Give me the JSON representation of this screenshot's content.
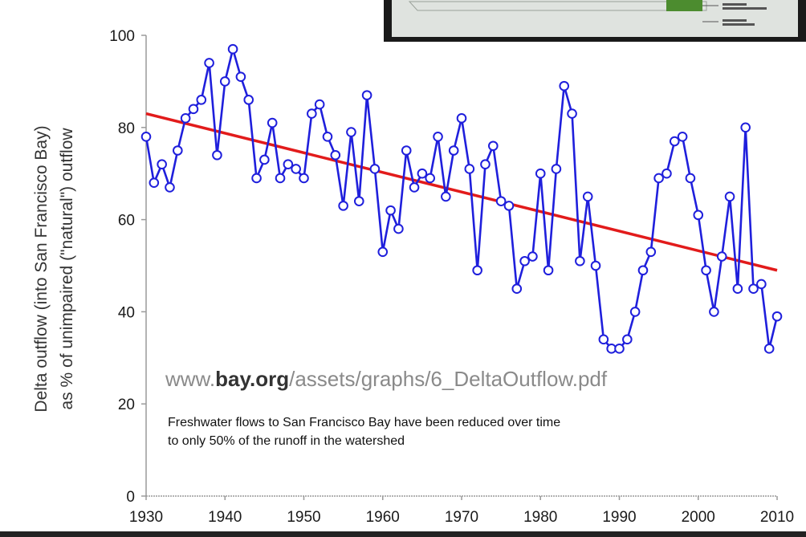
{
  "chart_data": {
    "type": "line",
    "title": "",
    "ylabel_line1": "Delta outflow (into San Francisco Bay)",
    "ylabel_line2": "as % of unimpaired (\"natural\") outflow",
    "xlabel": "",
    "xlim": [
      1930,
      2010
    ],
    "ylim": [
      0,
      100
    ],
    "x_ticks": [
      1930,
      1940,
      1950,
      1960,
      1970,
      1980,
      1990,
      2000,
      2010
    ],
    "y_ticks": [
      0,
      20,
      40,
      60,
      80,
      100
    ],
    "grid": false,
    "series": [
      {
        "name": "",
        "color": "#1f1fdc",
        "marker": "open-circle",
        "x": [
          1930,
          1931,
          1932,
          1933,
          1934,
          1935,
          1936,
          1937,
          1938,
          1939,
          1940,
          1941,
          1942,
          1943,
          1944,
          1945,
          1946,
          1947,
          1948,
          1949,
          1950,
          1951,
          1952,
          1953,
          1954,
          1955,
          1956,
          1957,
          1958,
          1959,
          1960,
          1961,
          1962,
          1963,
          1964,
          1965,
          1966,
          1967,
          1968,
          1969,
          1970,
          1971,
          1972,
          1973,
          1974,
          1975,
          1976,
          1977,
          1978,
          1979,
          1980,
          1981,
          1982,
          1983,
          1984,
          1985,
          1986,
          1987,
          1988,
          1989,
          1990,
          1991,
          1992,
          1993,
          1994,
          1995,
          1996,
          1997,
          1998,
          1999,
          2000,
          2001,
          2002,
          2003,
          2004,
          2005,
          2006,
          2007,
          2008,
          2009,
          2010
        ],
        "y": [
          78,
          68,
          72,
          67,
          75,
          82,
          84,
          86,
          94,
          74,
          90,
          97,
          91,
          86,
          69,
          73,
          81,
          69,
          72,
          71,
          69,
          83,
          85,
          78,
          74,
          63,
          79,
          64,
          87,
          71,
          53,
          62,
          58,
          75,
          67,
          70,
          69,
          78,
          65,
          75,
          82,
          71,
          49,
          72,
          76,
          64,
          63,
          45,
          51,
          52,
          70,
          49,
          71,
          89,
          83,
          51,
          65,
          50,
          34,
          32,
          32,
          34,
          40,
          49,
          53,
          69,
          70,
          77,
          78,
          69,
          61,
          49,
          40,
          52,
          65,
          45,
          80,
          45,
          46,
          32,
          39
        ]
      },
      {
        "name": "",
        "color": "#e21b1b",
        "type": "trend-line",
        "x": [
          1930,
          2010
        ],
        "y": [
          83,
          49
        ]
      }
    ],
    "annotations": {
      "url_bold": "bay.org",
      "url_prefix": "www.",
      "url_suffix": "/assets/graphs/6_DeltaOutflow.pdf",
      "caption_line1": "Freshwater flows to San Francisco Bay have been reduced over time",
      "caption_line2": "to only 50% of the runoff in the watershed"
    }
  },
  "colors": {
    "background": "#ffffff",
    "series": "#1f1fdc",
    "trend": "#e21b1b",
    "axis": "#9a9a9a",
    "inset_bg": "#1a1a1a"
  }
}
